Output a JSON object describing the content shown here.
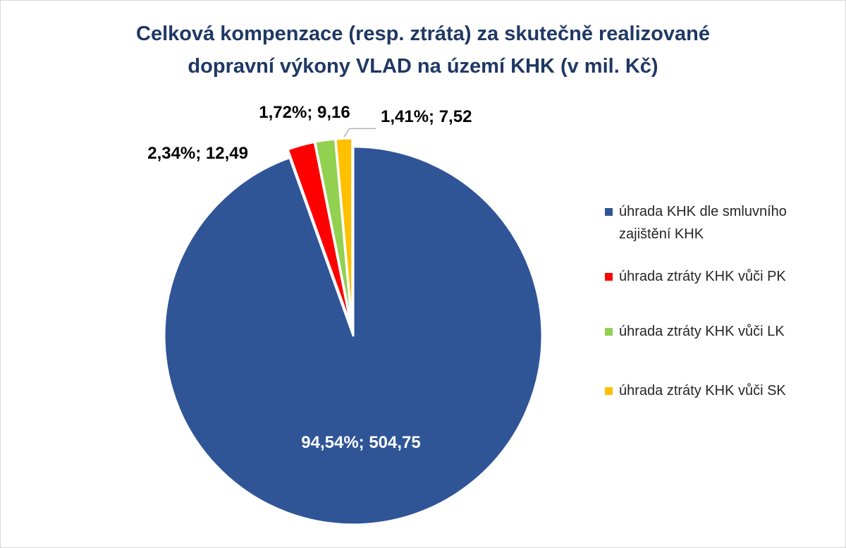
{
  "chart_data": {
    "type": "pie",
    "title_lines": [
      "Celková kompenzace (resp. ztráta) za skutečně realizované",
      "dopravní výkony VLAD na území KHK (v mil. Kč)"
    ],
    "slices": [
      {
        "name": "úhrada KHK dle smluvního zajištění KHK",
        "value": 504.75,
        "percent": 94.54,
        "label": "94,54%; 504,75",
        "color": "#2f5597"
      },
      {
        "name": "úhrada ztráty KHK vůči PK",
        "value": 12.49,
        "percent": 2.34,
        "label": "2,34%; 12,49",
        "color": "#ff0000"
      },
      {
        "name": "úhrada ztráty KHK vůči LK",
        "value": 9.16,
        "percent": 1.72,
        "label": "1,72%; 9,16",
        "color": "#92d050"
      },
      {
        "name": "úhrada ztráty KHK vůči SK",
        "value": 7.52,
        "percent": 1.41,
        "label": "1,41%; 7,52",
        "color": "#ffc000"
      }
    ],
    "legend": [
      {
        "lines": [
          "úhrada KHK dle smluvního",
          "zajištění KHK"
        ]
      },
      {
        "lines": [
          "úhrada ztráty KHK vůči PK"
        ]
      },
      {
        "lines": [
          "úhrada ztráty KHK vůči LK"
        ]
      },
      {
        "lines": [
          "úhrada ztráty KHK vůči SK"
        ]
      }
    ],
    "legend_position": "right"
  }
}
